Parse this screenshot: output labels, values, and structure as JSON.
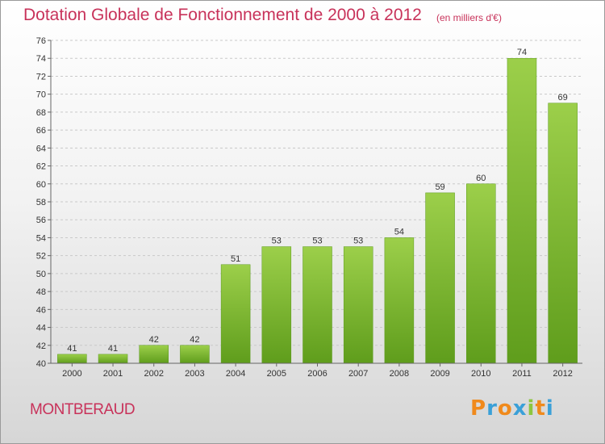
{
  "header": {
    "title": "Dotation Globale de Fonctionnement de 2000 à 2012",
    "subtitle": "(en milliers d'€)"
  },
  "footer": {
    "commune": "MONTBERAUD",
    "logo_letters": [
      "P",
      "r",
      "o",
      "x",
      "i",
      "t",
      "i"
    ],
    "logo_colors": [
      "#f08a1c",
      "#3aa0d8",
      "#f08a1c",
      "#3aa0d8",
      "#8cc63f",
      "#f08a1c",
      "#3aa0d8"
    ]
  },
  "chart_data": {
    "type": "bar",
    "categories": [
      "2000",
      "2001",
      "2002",
      "2003",
      "2004",
      "2005",
      "2006",
      "2007",
      "2008",
      "2009",
      "2010",
      "2011",
      "2012"
    ],
    "values": [
      41,
      41,
      42,
      42,
      51,
      53,
      53,
      53,
      54,
      59,
      60,
      74,
      69
    ],
    "title": "Dotation Globale de Fonctionnement de 2000 à 2012",
    "subtitle": "(en milliers d'€)",
    "ylim": [
      40,
      76
    ],
    "yticks": [
      40,
      42,
      44,
      46,
      48,
      50,
      52,
      54,
      56,
      58,
      60,
      62,
      64,
      66,
      68,
      70,
      72,
      74,
      76
    ],
    "grid": true,
    "bar_color": "#7cb82f"
  }
}
